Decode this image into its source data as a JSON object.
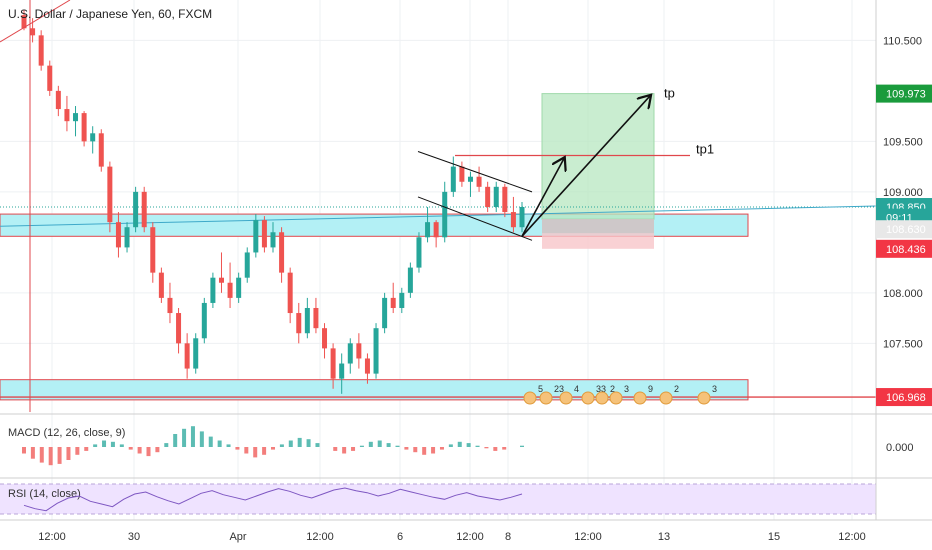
{
  "header": {
    "title": "U.S. Dollar / Japanese Yen, 60, FXCM"
  },
  "chart_data": {
    "type": "candlestick",
    "symbol": "USDJPY",
    "interval": "60",
    "ylim": [
      106.82,
      110.9
    ],
    "y_ticks": [
      "110.500",
      "109.500",
      "109.000",
      "108.000",
      "107.500"
    ],
    "price_tags": [
      {
        "label": "109.973",
        "value": 109.973,
        "color": "#1a9b3c"
      },
      {
        "label": "108.850",
        "value": 108.85,
        "color": "#27a59a"
      },
      {
        "label": "09:11",
        "value": 108.745,
        "color": "#27a59a"
      },
      {
        "label": "108.630",
        "value": 108.63,
        "color": "#e8e8e8"
      },
      {
        "label": "108.436",
        "value": 108.436,
        "color": "#f23645"
      },
      {
        "label": "106.968",
        "value": 106.968,
        "color": "#f23645"
      }
    ],
    "x_ticks": [
      "12:00",
      "30",
      "Apr",
      "12:00",
      "6",
      "12:00",
      "8",
      "12:00",
      "13",
      "15",
      "12:00"
    ],
    "zones": [
      {
        "from": 108.56,
        "to": 108.78,
        "color": "#b3f0f5",
        "border": "#e0474c"
      },
      {
        "from": 106.94,
        "to": 107.14,
        "color": "#b3f0f5",
        "border": "#e0474c"
      }
    ],
    "lines": [
      {
        "label": "tp1",
        "value": 109.36,
        "color": "#e0474c"
      },
      {
        "label": "",
        "value": 106.968,
        "color": "#e0474c"
      }
    ],
    "position": {
      "entry": 108.73,
      "target": 109.973,
      "stop": 108.436
    },
    "annotations": [
      {
        "label": "tp",
        "value": 109.973
      },
      {
        "label": "tp1",
        "value": 109.36
      }
    ],
    "candles": [
      [
        110.75,
        110.8,
        110.6,
        110.62
      ],
      [
        110.62,
        110.72,
        110.48,
        110.55
      ],
      [
        110.55,
        110.6,
        110.2,
        110.25
      ],
      [
        110.25,
        110.3,
        109.95,
        110.0
      ],
      [
        110.0,
        110.05,
        109.75,
        109.82
      ],
      [
        109.82,
        109.95,
        109.6,
        109.7
      ],
      [
        109.7,
        109.85,
        109.55,
        109.78
      ],
      [
        109.78,
        109.8,
        109.45,
        109.5
      ],
      [
        109.5,
        109.65,
        109.38,
        109.58
      ],
      [
        109.58,
        109.62,
        109.2,
        109.25
      ],
      [
        109.25,
        109.3,
        108.6,
        108.7
      ],
      [
        108.7,
        108.8,
        108.35,
        108.45
      ],
      [
        108.45,
        108.7,
        108.4,
        108.65
      ],
      [
        108.65,
        109.05,
        108.6,
        109.0
      ],
      [
        109.0,
        109.05,
        108.6,
        108.65
      ],
      [
        108.65,
        108.7,
        108.1,
        108.2
      ],
      [
        108.2,
        108.25,
        107.9,
        107.95
      ],
      [
        107.95,
        108.1,
        107.7,
        107.8
      ],
      [
        107.8,
        107.85,
        107.4,
        107.5
      ],
      [
        107.5,
        107.6,
        107.15,
        107.25
      ],
      [
        107.25,
        107.6,
        107.2,
        107.55
      ],
      [
        107.55,
        107.95,
        107.5,
        107.9
      ],
      [
        107.9,
        108.2,
        107.85,
        108.15
      ],
      [
        108.15,
        108.4,
        108.0,
        108.1
      ],
      [
        108.1,
        108.3,
        107.85,
        107.95
      ],
      [
        107.95,
        108.2,
        107.9,
        108.15
      ],
      [
        108.15,
        108.45,
        108.1,
        108.4
      ],
      [
        108.4,
        108.78,
        108.35,
        108.72
      ],
      [
        108.72,
        108.76,
        108.4,
        108.45
      ],
      [
        108.45,
        108.7,
        108.4,
        108.6
      ],
      [
        108.6,
        108.65,
        108.1,
        108.2
      ],
      [
        108.2,
        108.25,
        107.7,
        107.8
      ],
      [
        107.8,
        107.9,
        107.5,
        107.6
      ],
      [
        107.6,
        107.95,
        107.55,
        107.85
      ],
      [
        107.85,
        107.95,
        107.6,
        107.65
      ],
      [
        107.65,
        107.7,
        107.35,
        107.45
      ],
      [
        107.45,
        107.5,
        107.05,
        107.15
      ],
      [
        107.15,
        107.4,
        107.0,
        107.3
      ],
      [
        107.3,
        107.55,
        107.2,
        107.5
      ],
      [
        107.5,
        107.6,
        107.25,
        107.35
      ],
      [
        107.35,
        107.4,
        107.1,
        107.2
      ],
      [
        107.2,
        107.7,
        107.15,
        107.65
      ],
      [
        107.65,
        108.0,
        107.6,
        107.95
      ],
      [
        107.95,
        108.1,
        107.8,
        107.85
      ],
      [
        107.85,
        108.05,
        107.8,
        108.0
      ],
      [
        108.0,
        108.3,
        107.95,
        108.25
      ],
      [
        108.25,
        108.6,
        108.2,
        108.55
      ],
      [
        108.55,
        108.85,
        108.5,
        108.7
      ],
      [
        108.7,
        108.72,
        108.45,
        108.55
      ],
      [
        108.55,
        109.1,
        108.5,
        109.0
      ],
      [
        109.0,
        109.35,
        108.95,
        109.25
      ],
      [
        109.25,
        109.3,
        109.05,
        109.1
      ],
      [
        109.1,
        109.2,
        108.95,
        109.15
      ],
      [
        109.15,
        109.25,
        109.0,
        109.05
      ],
      [
        109.05,
        109.1,
        108.8,
        108.85
      ],
      [
        108.85,
        109.1,
        108.8,
        109.05
      ],
      [
        109.05,
        109.08,
        108.75,
        108.8
      ],
      [
        108.8,
        108.95,
        108.6,
        108.65
      ],
      [
        108.65,
        108.9,
        108.6,
        108.85
      ]
    ],
    "macd": [
      -0.05,
      -0.09,
      -0.12,
      -0.14,
      -0.13,
      -0.1,
      -0.06,
      -0.03,
      0.02,
      0.05,
      0.04,
      0.02,
      -0.02,
      -0.05,
      -0.07,
      -0.04,
      0.03,
      0.1,
      0.14,
      0.16,
      0.12,
      0.08,
      0.05,
      0.02,
      -0.02,
      -0.05,
      -0.08,
      -0.06,
      -0.02,
      0.02,
      0.05,
      0.07,
      0.06,
      0.03,
      0.0,
      -0.03,
      -0.05,
      -0.03,
      0.01,
      0.04,
      0.05,
      0.03,
      0.01,
      -0.02,
      -0.04,
      -0.06,
      -0.05,
      -0.02,
      0.02,
      0.04,
      0.03,
      0.01,
      -0.01,
      -0.03,
      -0.02,
      0.0,
      0.01
    ],
    "rsi": [
      38,
      33,
      30,
      41,
      49,
      52,
      44,
      40,
      36,
      47,
      55,
      58,
      51,
      45,
      40,
      48,
      56,
      60,
      54,
      50,
      46,
      52,
      58,
      63,
      59,
      53,
      49,
      55,
      61,
      64,
      60,
      57,
      52,
      56,
      62,
      58,
      54,
      50,
      47,
      53,
      57,
      52,
      49,
      46,
      50,
      55
    ],
    "indicators": [
      {
        "label": "MACD (12, 26, close, 9)"
      },
      {
        "label": "RSI (14, close)"
      }
    ],
    "macd_zero_label": "0.000",
    "events": [
      "5",
      "23",
      "4",
      "33",
      "2",
      "3",
      "9",
      "2",
      "3"
    ]
  }
}
